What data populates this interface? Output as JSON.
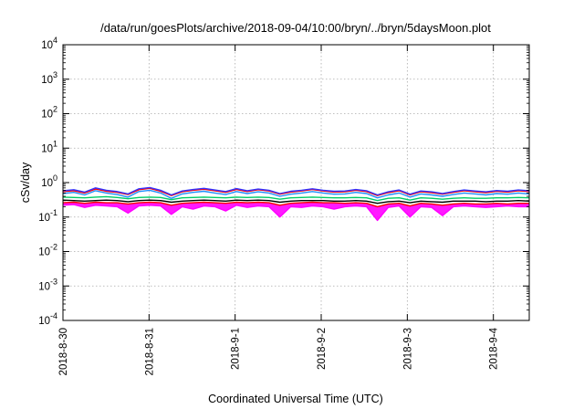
{
  "chart_data": {
    "type": "line",
    "title": "/data/run/goesPlots/archive/2018-09-04/10:00/bryn/../bryn/5daysMoon.plot",
    "xlabel": "Coordinated Universal Time (UTC)",
    "ylabel": "cSv/day",
    "yscale": "log",
    "ylim": [
      0.0001,
      10000
    ],
    "y_ticks": [
      {
        "value": 0.0001,
        "base": "10",
        "exp": "-4"
      },
      {
        "value": 0.001,
        "base": "10",
        "exp": "-3"
      },
      {
        "value": 0.01,
        "base": "10",
        "exp": "-2"
      },
      {
        "value": 0.1,
        "base": "10",
        "exp": "-1"
      },
      {
        "value": 1,
        "base": "10",
        "exp": "0"
      },
      {
        "value": 10,
        "base": "10",
        "exp": "1"
      },
      {
        "value": 100,
        "base": "10",
        "exp": "2"
      },
      {
        "value": 1000,
        "base": "10",
        "exp": "3"
      },
      {
        "value": 10000,
        "base": "10",
        "exp": "4"
      }
    ],
    "x_ticks": [
      "2018-8-30",
      "2018-8-31",
      "2018-9-1",
      "2018-9-2",
      "2018-9-3",
      "2018-9-4"
    ],
    "xlim": [
      "2018-08-30T00:00",
      "2018-09-04T10:00"
    ],
    "grid": true,
    "series": [
      {
        "color": "#ff00ff",
        "fill": true,
        "values": [
          0.22,
          0.23,
          0.19,
          0.22,
          0.21,
          0.2,
          0.13,
          0.21,
          0.22,
          0.21,
          0.12,
          0.2,
          0.17,
          0.21,
          0.2,
          0.15,
          0.22,
          0.19,
          0.21,
          0.2,
          0.1,
          0.2,
          0.19,
          0.21,
          0.2,
          0.17,
          0.2,
          0.21,
          0.2,
          0.08,
          0.19,
          0.21,
          0.1,
          0.2,
          0.19,
          0.11,
          0.2,
          0.21,
          0.2,
          0.19,
          0.2,
          0.21,
          0.2,
          0.2
        ]
      },
      {
        "color": "#ff0000",
        "values": [
          0.26,
          0.27,
          0.25,
          0.27,
          0.26,
          0.26,
          0.24,
          0.26,
          0.27,
          0.26,
          0.22,
          0.25,
          0.26,
          0.27,
          0.26,
          0.25,
          0.27,
          0.26,
          0.27,
          0.26,
          0.22,
          0.25,
          0.26,
          0.27,
          0.26,
          0.26,
          0.25,
          0.26,
          0.25,
          0.2,
          0.24,
          0.25,
          0.21,
          0.25,
          0.24,
          0.22,
          0.24,
          0.25,
          0.24,
          0.24,
          0.25,
          0.24,
          0.25,
          0.25
        ]
      },
      {
        "color": "#000000",
        "values": [
          0.31,
          0.3,
          0.29,
          0.3,
          0.31,
          0.3,
          0.28,
          0.3,
          0.31,
          0.3,
          0.27,
          0.29,
          0.3,
          0.31,
          0.3,
          0.29,
          0.31,
          0.3,
          0.31,
          0.3,
          0.27,
          0.29,
          0.3,
          0.3,
          0.3,
          0.29,
          0.29,
          0.3,
          0.29,
          0.25,
          0.28,
          0.29,
          0.26,
          0.29,
          0.28,
          0.27,
          0.29,
          0.29,
          0.29,
          0.28,
          0.29,
          0.29,
          0.3,
          0.29
        ]
      },
      {
        "color": "#00cc66",
        "values": [
          0.38,
          0.37,
          0.36,
          0.38,
          0.39,
          0.37,
          0.34,
          0.37,
          0.38,
          0.37,
          0.32,
          0.36,
          0.37,
          0.38,
          0.37,
          0.36,
          0.38,
          0.37,
          0.38,
          0.37,
          0.33,
          0.36,
          0.37,
          0.38,
          0.37,
          0.36,
          0.36,
          0.37,
          0.36,
          0.3,
          0.35,
          0.36,
          0.31,
          0.36,
          0.35,
          0.33,
          0.35,
          0.36,
          0.35,
          0.35,
          0.36,
          0.36,
          0.37,
          0.36
        ]
      },
      {
        "color": "#1e90ff",
        "values": [
          0.48,
          0.52,
          0.44,
          0.58,
          0.5,
          0.45,
          0.38,
          0.55,
          0.6,
          0.5,
          0.35,
          0.47,
          0.52,
          0.56,
          0.5,
          0.45,
          0.55,
          0.48,
          0.54,
          0.5,
          0.4,
          0.46,
          0.5,
          0.55,
          0.5,
          0.46,
          0.47,
          0.52,
          0.48,
          0.36,
          0.44,
          0.5,
          0.38,
          0.47,
          0.44,
          0.4,
          0.45,
          0.5,
          0.47,
          0.44,
          0.48,
          0.46,
          0.5,
          0.47
        ]
      },
      {
        "color": "#ff0000",
        "values": [
          0.55,
          0.58,
          0.5,
          0.65,
          0.56,
          0.52,
          0.45,
          0.62,
          0.68,
          0.56,
          0.42,
          0.54,
          0.6,
          0.64,
          0.58,
          0.52,
          0.63,
          0.55,
          0.62,
          0.57,
          0.46,
          0.53,
          0.57,
          0.63,
          0.57,
          0.53,
          0.54,
          0.6,
          0.55,
          0.42,
          0.51,
          0.58,
          0.44,
          0.54,
          0.51,
          0.46,
          0.52,
          0.58,
          0.54,
          0.51,
          0.56,
          0.53,
          0.58,
          0.55
        ]
      },
      {
        "color": "#3333ff",
        "values": [
          0.58,
          0.62,
          0.53,
          0.7,
          0.6,
          0.55,
          0.47,
          0.66,
          0.72,
          0.6,
          0.44,
          0.57,
          0.63,
          0.68,
          0.61,
          0.55,
          0.67,
          0.58,
          0.65,
          0.6,
          0.48,
          0.56,
          0.6,
          0.66,
          0.6,
          0.56,
          0.57,
          0.63,
          0.58,
          0.44,
          0.54,
          0.61,
          0.46,
          0.57,
          0.54,
          0.48,
          0.55,
          0.61,
          0.57,
          0.54,
          0.59,
          0.56,
          0.61,
          0.58
        ]
      }
    ]
  }
}
